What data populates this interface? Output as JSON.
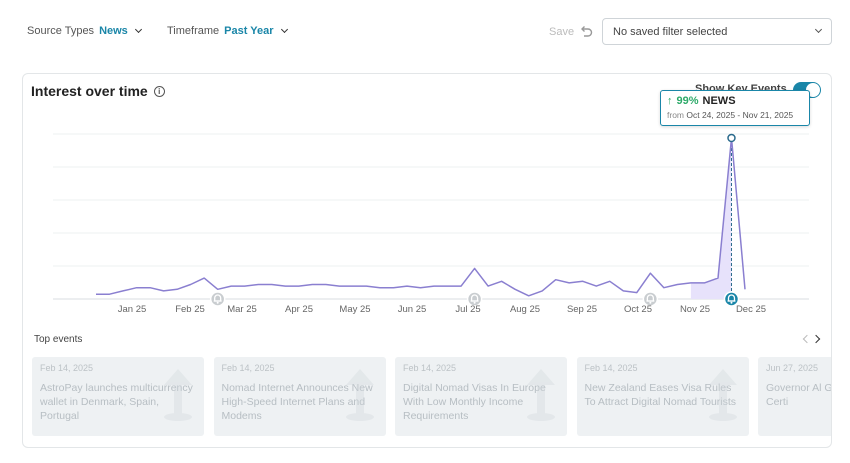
{
  "filters": {
    "source_types_label": "Source Types",
    "source_types_value": "News",
    "timeframe_label": "Timeframe",
    "timeframe_value": "Past Year",
    "save_label": "Save",
    "saved_filter_text": "No saved filter selected"
  },
  "card": {
    "title": "Interest over time",
    "key_events_label": "Show Key Events",
    "key_events_on": true,
    "tooltip": {
      "percent": "99%",
      "name": "NEWS",
      "from_label": "from",
      "range": "Oct 24, 2025 - Nov 21, 2025"
    }
  },
  "chart_data": {
    "type": "line",
    "x_tick_labels": [
      "Jan 25",
      "Feb 25",
      "Mar 25",
      "Apr 25",
      "May 25",
      "Jun 25",
      "Jul 25",
      "Aug 25",
      "Sep 25",
      "Oct 25",
      "Nov 25",
      "Dec 25"
    ],
    "series": [
      {
        "values": [
          3,
          3,
          5,
          7,
          7,
          5,
          6,
          9,
          13,
          6,
          8,
          8,
          9,
          9,
          8,
          8,
          9,
          9,
          8,
          8,
          8,
          7,
          7,
          8,
          7,
          8,
          8,
          8,
          19,
          8,
          11,
          6,
          2,
          5,
          12,
          10,
          11,
          8,
          11,
          5,
          4,
          16,
          7,
          9,
          10,
          10,
          13,
          100,
          6
        ]
      }
    ],
    "ylim": [
      0,
      100
    ],
    "highlight_range_index": [
      44,
      47
    ],
    "key_event_indices": [
      9,
      28,
      41,
      47
    ],
    "grid": true,
    "colors": {
      "line": "#8a7fd0",
      "fill": "#e7e2fb",
      "accent": "#1a86a8",
      "marker": "#2a6a8c"
    }
  },
  "top_events": {
    "title": "Top events",
    "items": [
      {
        "date": "Feb 14, 2025",
        "title": "AstroPay launches multicurrency wallet in Denmark, Spain, Portugal"
      },
      {
        "date": "Feb 14, 2025",
        "title": "Nomad Internet Announces New High-Speed Internet Plans and Modems"
      },
      {
        "date": "Feb 14, 2025",
        "title": "Digital Nomad Visas In Europe With Low Monthly Income Requirements"
      },
      {
        "date": "Feb 14, 2025",
        "title": "New Zealand Eases Visa Rules To Attract Digital Nomad Tourists"
      },
      {
        "date": "Jun 27, 2025",
        "title": "Governor Al Grapevine A Texas Certi"
      }
    ]
  }
}
